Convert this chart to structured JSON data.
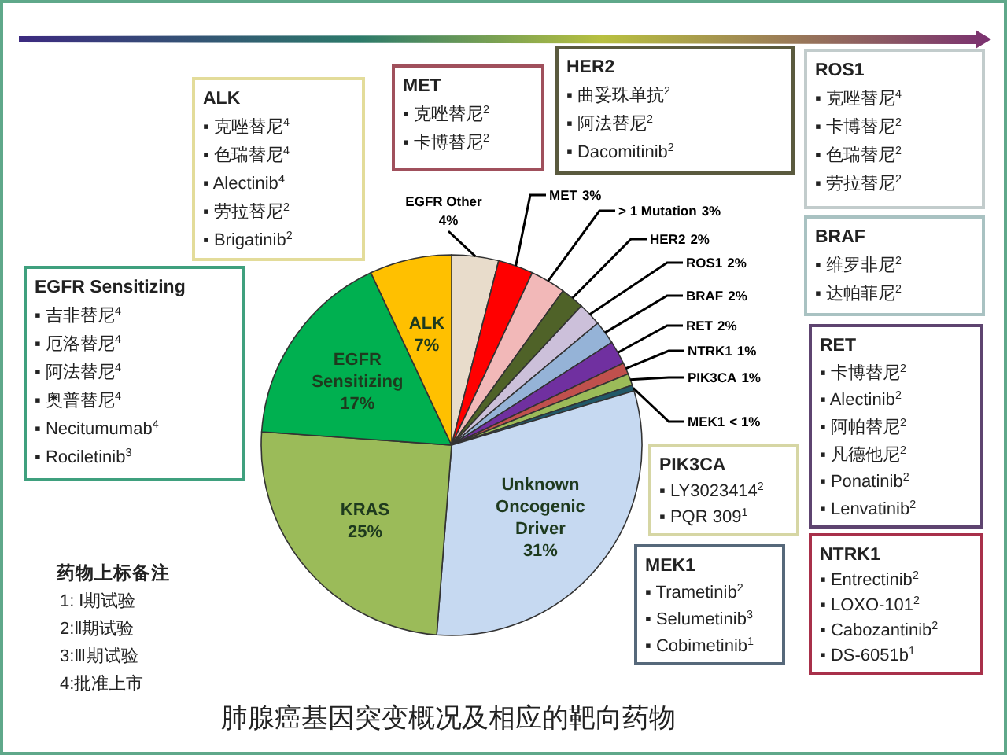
{
  "chart_data": {
    "type": "pie",
    "title": "肺腺癌基因突变概况及相应的靶向药物",
    "categories": [
      "EGFR Other",
      "MET",
      "> 1 Mutation",
      "HER2",
      "ROS1",
      "BRAF",
      "RET",
      "NTRK1",
      "PIK3CA",
      "MEK1",
      "Unknown Oncogenic Driver",
      "KRAS",
      "EGFR Sensitizing",
      "ALK"
    ],
    "values": [
      4,
      3,
      3,
      2,
      2,
      2,
      2,
      1,
      1,
      0.5,
      31,
      25,
      17,
      7
    ],
    "value_labels": [
      "4%",
      "3%",
      "3%",
      "2%",
      "2%",
      "2%",
      "2%",
      "1%",
      "1%",
      "< 1%",
      "31%",
      "25%",
      "17%",
      "7%"
    ],
    "colors": [
      "#e8dccb",
      "#ff0000",
      "#f2b8b8",
      "#4f6228",
      "#ccc0da",
      "#95b3d7",
      "#7030a0",
      "#c0504d",
      "#9bbb59",
      "#215868",
      "#c6d9f1",
      "#9bbb59",
      "#00b050",
      "#ffc000"
    ],
    "annotations": [
      "ALK\n▪ 克唑替尼$^{4}$\n▪ 色瑞替尼$^{4}$\n▪ Alectinib$^{4}$\n▪ 劳拉替尼$^{2}$\n▪ Brigatinib$^{2}$",
      "MET\n▪ 克唑替尼$^{2}$\n▪ 卡博替尼$^{2}$",
      "HER2\n▪ 曲妥珠单抗$^{2}$\n▪ 阿法替尼$^{2}$\n▪ Dacomitinib$^{2}$",
      "ROS1\n▪ 克唑替尼$^{4}$\n▪ 卡博替尼$^{2}$\n▪ 色瑞替尼$^{2}$\n▪ 劳拉替尼$^{2}$",
      "BRAF\n▪ 维罗非尼$^{2}$\n▪ 达帕菲尼$^{2}$",
      "RET\n▪ 卡博替尼$^{2}$\n▪ Alectinib$^{2}$\n▪ 阿帕替尼$^{2}$\n▪ 凡德他尼$^{2}$\n▪ Ponatinib$^{2}$\n▪ Lenvatinib$^{2}$",
      "PIK3CA\n▪ LY3023414$^{2}$\n▪ PQR 309$^{1}$",
      "MEK1\n▪ Trametinib$^{2}$\n▪ Selumetinib$^{3}$\n▪ Cobimetinib$^{1}$",
      "NTRK1\n▪ Entrectinib$^{2}$\n▪ LOXO-101$^{2}$\n▪ Cabozantinib$^{2}$\n▪ DS-6051b$^{1}$",
      "EGFR Sensitizing\n▪ 吉非替尼$^{4}$\n▪ 厄洛替尼$^{4}$\n▪ 阿法替尼$^{4}$\n▪ 奥普替尼$^{4}$\n▪ Necitumumab$^{4}$\n▪ Rociletinib$^{3}$",
      "药物上标备注\n1: Ⅰ期试验\n2:Ⅱ期试验\n3:Ⅲ期试验\n4:批准上市"
    ]
  }
}
